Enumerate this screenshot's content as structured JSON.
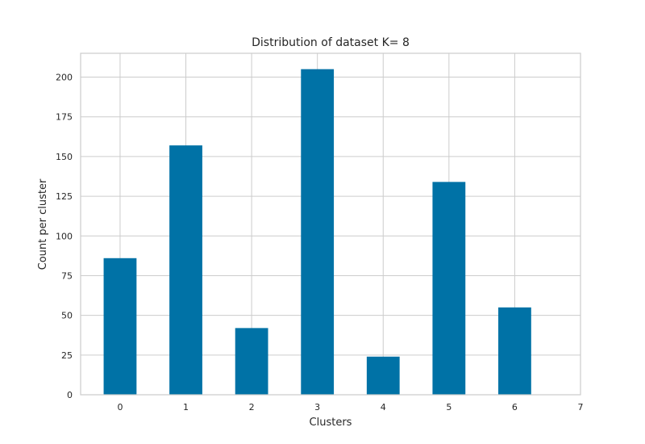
{
  "chart_data": {
    "type": "bar",
    "title": "Distribution of dataset K= 8",
    "xlabel": "Clusters",
    "ylabel": "Count per cluster",
    "categories": [
      "0",
      "1",
      "2",
      "3",
      "4",
      "5",
      "6"
    ],
    "values": [
      86,
      157,
      42,
      205,
      24,
      134,
      55
    ],
    "xticks": [
      "0",
      "1",
      "2",
      "3",
      "4",
      "5",
      "6",
      "7"
    ],
    "yticks": [
      0,
      25,
      50,
      75,
      100,
      125,
      150,
      175,
      200
    ],
    "xlim": [
      -0.6,
      7
    ],
    "ylim": [
      0,
      215
    ],
    "grid": true,
    "bar_color": "#0072a6",
    "grid_color": "#cccccc",
    "frame_color": "#cccccc"
  }
}
